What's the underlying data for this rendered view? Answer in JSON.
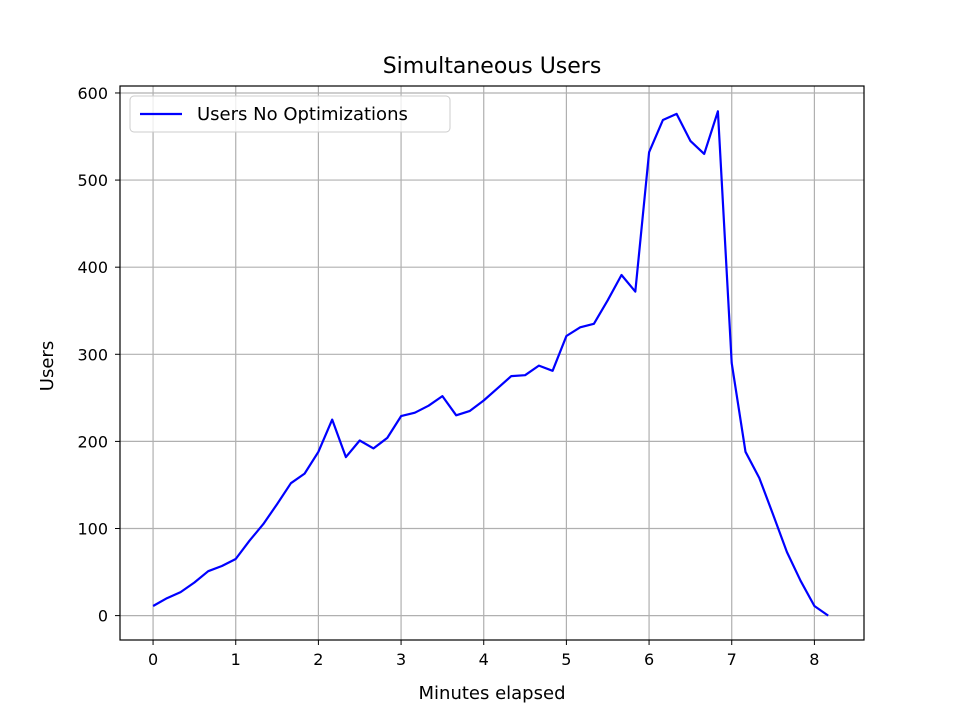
{
  "chart_data": {
    "type": "line",
    "title": "Simultaneous Users",
    "xlabel": "Minutes elapsed",
    "ylabel": "Users",
    "xlim": [
      -0.4,
      8.6
    ],
    "ylim": [
      -28,
      608
    ],
    "xticks": [
      0,
      1,
      2,
      3,
      4,
      5,
      6,
      7,
      8
    ],
    "yticks": [
      0,
      100,
      200,
      300,
      400,
      500,
      600
    ],
    "grid": true,
    "legend_position": "top-left",
    "series": [
      {
        "name": "Users No Optimizations",
        "color": "#0000ff",
        "x": [
          0,
          0.167,
          0.333,
          0.5,
          0.667,
          0.833,
          1.0,
          1.167,
          1.333,
          1.5,
          1.667,
          1.833,
          2.0,
          2.167,
          2.333,
          2.5,
          2.667,
          2.833,
          3.0,
          3.167,
          3.333,
          3.5,
          3.667,
          3.833,
          4.0,
          4.167,
          4.333,
          4.5,
          4.667,
          4.833,
          5.0,
          5.167,
          5.333,
          5.5,
          5.667,
          5.833,
          6.0,
          6.167,
          6.333,
          6.5,
          6.667,
          6.833,
          7.0,
          7.167,
          7.333,
          7.5,
          7.667,
          7.833,
          8.0,
          8.167
        ],
        "y": [
          11,
          20,
          27,
          38,
          51,
          57,
          65,
          86,
          105,
          128,
          152,
          163,
          188,
          225,
          182,
          201,
          192,
          204,
          229,
          233,
          241,
          252,
          230,
          235,
          247,
          261,
          275,
          276,
          287,
          281,
          321,
          331,
          335,
          362,
          391,
          372,
          532,
          569,
          576,
          545,
          530,
          579,
          290,
          188,
          158,
          116,
          73,
          40,
          11,
          0
        ]
      }
    ]
  }
}
